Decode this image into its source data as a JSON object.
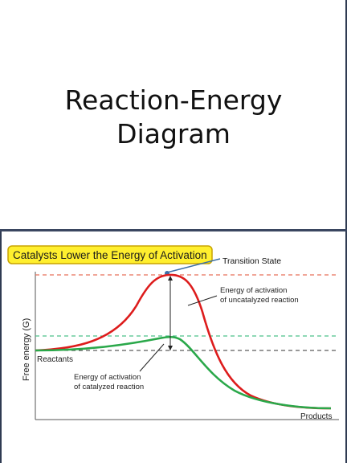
{
  "slide1": {
    "title_line1": "Reaction-Energy",
    "title_line2": "Diagram"
  },
  "diagram": {
    "banner": "Catalysts Lower the Energy of Activation",
    "transition_state": "Transition State",
    "y_axis_label": "Free energy (G)",
    "reactants": "Reactants",
    "products": "Products",
    "uncatalyzed_line1": "Energy of activation",
    "uncatalyzed_line2": "of uncatalyzed reaction",
    "catalyzed_line1": "Energy of activation",
    "catalyzed_line2": "of catalyzed reaction",
    "colors": {
      "uncatalyzed": "#dd1c1c",
      "catalyzed": "#2aa84a",
      "banner_fill": "#ffef2e",
      "banner_border": "#c8a400"
    }
  }
}
